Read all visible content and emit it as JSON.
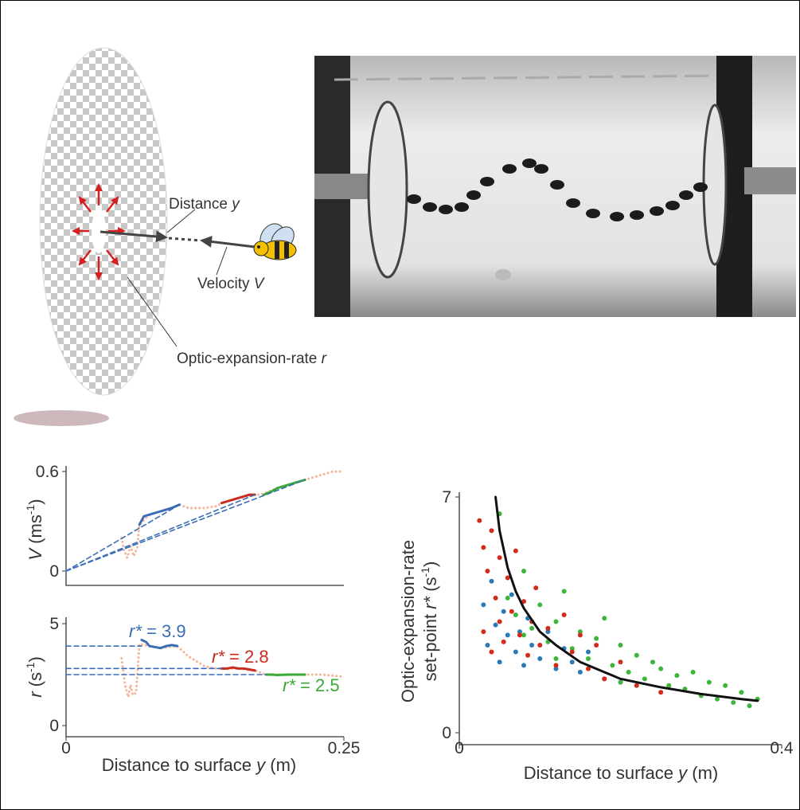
{
  "diagram": {
    "distance_label": [
      "Distance",
      "y"
    ],
    "velocity_label": [
      "Velocity",
      "V"
    ],
    "rate_label": [
      "Optic-expansion-rate",
      "r"
    ]
  },
  "chart_data": [
    {
      "type": "line",
      "ylabel": [
        "V",
        "(ms",
        "-1",
        ")"
      ],
      "xlim": [
        0,
        0.25
      ],
      "ylim": [
        0,
        0.6
      ],
      "yticks": [
        0,
        0.6
      ],
      "series": [
        {
          "color": "#f4b49c",
          "style": "dotted",
          "x": [
            0.05,
            0.052,
            0.055,
            0.058,
            0.061,
            0.064,
            0.066,
            0.075,
            0.085,
            0.095,
            0.102,
            0.11,
            0.125,
            0.135,
            0.14,
            0.155,
            0.17,
            0.175,
            0.19,
            0.205,
            0.215,
            0.23,
            0.24,
            0.25
          ],
          "values": [
            0.2,
            0.13,
            0.08,
            0.15,
            0.09,
            0.14,
            0.28,
            0.34,
            0.36,
            0.38,
            0.4,
            0.38,
            0.38,
            0.39,
            0.41,
            0.44,
            0.46,
            0.46,
            0.5,
            0.53,
            0.55,
            0.58,
            0.6,
            0.6
          ]
        },
        {
          "color": "#3a6db5",
          "style": "solid",
          "x": [
            0.066,
            0.07,
            0.075,
            0.08,
            0.085,
            0.09,
            0.095,
            0.102
          ],
          "values": [
            0.28,
            0.33,
            0.34,
            0.35,
            0.36,
            0.37,
            0.38,
            0.4
          ]
        },
        {
          "color": "#cc2a1e",
          "style": "solid",
          "x": [
            0.14,
            0.145,
            0.15,
            0.155,
            0.16,
            0.165,
            0.17
          ],
          "values": [
            0.41,
            0.42,
            0.43,
            0.44,
            0.45,
            0.46,
            0.46
          ]
        },
        {
          "color": "#3aaa35",
          "style": "solid",
          "x": [
            0.178,
            0.185,
            0.19,
            0.195,
            0.2,
            0.205,
            0.21,
            0.215
          ],
          "values": [
            0.46,
            0.48,
            0.5,
            0.51,
            0.52,
            0.53,
            0.54,
            0.55
          ]
        },
        {
          "color": "#3a6db5",
          "style": "dashed",
          "x": [
            0,
            0.102
          ],
          "values": [
            0,
            0.4
          ]
        },
        {
          "color": "#3a6db5",
          "style": "dashed",
          "x": [
            0,
            0.17
          ],
          "values": [
            0,
            0.46
          ]
        },
        {
          "color": "#3a6db5",
          "style": "dashed",
          "x": [
            0,
            0.215
          ],
          "values": [
            0,
            0.55
          ]
        }
      ]
    },
    {
      "type": "line",
      "ylabel": [
        "r",
        "(s",
        "-1",
        ")"
      ],
      "xlabel": [
        "Distance to surface",
        "y",
        "(m)"
      ],
      "xlim": [
        0,
        0.25
      ],
      "ylim": [
        0,
        5
      ],
      "xticks": [
        0,
        0.25
      ],
      "yticks": [
        0,
        5
      ],
      "annotations": [
        [
          "r*",
          "= 3.9"
        ],
        [
          "r*",
          "= 2.8"
        ],
        [
          "r*",
          "= 2.5"
        ]
      ],
      "series": [
        {
          "color": "#f4b49c",
          "style": "dotted",
          "x": [
            0.05,
            0.053,
            0.056,
            0.058,
            0.06,
            0.063,
            0.066,
            0.075,
            0.085,
            0.1,
            0.11,
            0.125,
            0.135,
            0.14,
            0.155,
            0.17,
            0.18,
            0.2,
            0.215,
            0.23,
            0.25
          ],
          "values": [
            3.3,
            2.0,
            1.4,
            2.0,
            1.5,
            1.6,
            4.0,
            3.9,
            3.8,
            3.9,
            3.4,
            2.9,
            2.8,
            2.8,
            2.8,
            2.7,
            2.5,
            2.5,
            2.5,
            2.5,
            2.4
          ]
        },
        {
          "color": "#3a6db5",
          "style": "solid",
          "x": [
            0.068,
            0.072,
            0.075,
            0.08,
            0.085,
            0.09,
            0.095,
            0.1
          ],
          "values": [
            4.2,
            4.1,
            3.9,
            3.85,
            3.8,
            3.9,
            3.95,
            3.9
          ]
        },
        {
          "color": "#cc2a1e",
          "style": "solid",
          "x": [
            0.14,
            0.145,
            0.15,
            0.155,
            0.16,
            0.165,
            0.17
          ],
          "values": [
            2.8,
            2.8,
            2.85,
            2.8,
            2.8,
            2.75,
            2.7
          ]
        },
        {
          "color": "#3aaa35",
          "style": "solid",
          "x": [
            0.18,
            0.185,
            0.19,
            0.2,
            0.205,
            0.21,
            0.215
          ],
          "values": [
            2.5,
            2.5,
            2.48,
            2.5,
            2.5,
            2.5,
            2.5
          ]
        },
        {
          "color": "#3a6db5",
          "style": "dashed",
          "x": [
            0,
            0.068
          ],
          "values": [
            3.9,
            3.9
          ]
        },
        {
          "color": "#3a6db5",
          "style": "dashed",
          "x": [
            0,
            0.14
          ],
          "values": [
            2.8,
            2.8
          ]
        },
        {
          "color": "#3a6db5",
          "style": "dashed",
          "x": [
            0,
            0.18
          ],
          "values": [
            2.5,
            2.5
          ]
        }
      ]
    },
    {
      "type": "scatter",
      "ylabel": [
        [
          "Optic-expansion-rate"
        ],
        [
          "set-point",
          "r*",
          "(s",
          "-1",
          ")"
        ]
      ],
      "xlabel": [
        "Distance to surface",
        "y",
        "(m)"
      ],
      "xlim": [
        0,
        0.4
      ],
      "ylim": [
        0,
        7
      ],
      "xticks": [
        0,
        0.4
      ],
      "yticks": [
        0,
        7
      ],
      "series": [
        {
          "color": "#2a7ab8",
          "x": [
            0.03,
            0.035,
            0.04,
            0.045,
            0.05,
            0.055,
            0.06,
            0.065,
            0.07,
            0.075,
            0.08,
            0.085,
            0.09,
            0.1,
            0.11,
            0.12,
            0.13,
            0.14,
            0.15,
            0.16,
            0.18,
            0.2
          ],
          "values": [
            3.8,
            2.6,
            4.5,
            3.2,
            2.1,
            3.6,
            2.9,
            4.1,
            2.4,
            3.0,
            2.0,
            3.4,
            2.6,
            2.2,
            3.0,
            1.9,
            2.5,
            2.1,
            1.8,
            2.4,
            1.6,
            1.5
          ]
        },
        {
          "color": "#3db53a",
          "x": [
            0.05,
            0.06,
            0.07,
            0.08,
            0.09,
            0.1,
            0.11,
            0.12,
            0.13,
            0.14,
            0.15,
            0.16,
            0.17,
            0.18,
            0.19,
            0.2,
            0.21,
            0.22,
            0.23,
            0.24,
            0.25,
            0.26,
            0.27,
            0.28,
            0.29,
            0.3,
            0.31,
            0.32,
            0.33,
            0.34,
            0.35,
            0.36,
            0.37,
            0.08,
            0.12,
            0.2
          ],
          "values": [
            6.5,
            4.0,
            3.5,
            4.8,
            3.1,
            3.8,
            2.7,
            3.3,
            4.2,
            2.5,
            3.0,
            2.2,
            2.8,
            3.4,
            2.0,
            2.6,
            1.8,
            2.3,
            1.6,
            2.1,
            1.9,
            1.4,
            1.7,
            1.3,
            1.8,
            1.1,
            1.5,
            1.0,
            1.4,
            0.9,
            1.2,
            0.8,
            1.0,
            2.9,
            2.2,
            1.5
          ]
        },
        {
          "color": "#d42a1a",
          "x": [
            0.025,
            0.03,
            0.03,
            0.035,
            0.04,
            0.04,
            0.045,
            0.05,
            0.05,
            0.055,
            0.06,
            0.065,
            0.07,
            0.075,
            0.08,
            0.085,
            0.09,
            0.095,
            0.1,
            0.11,
            0.12,
            0.13,
            0.14,
            0.15,
            0.16,
            0.17,
            0.18,
            0.2,
            0.22,
            0.25
          ],
          "values": [
            6.3,
            5.5,
            3.0,
            4.8,
            6.0,
            2.4,
            4.0,
            5.2,
            3.3,
            2.7,
            4.6,
            3.6,
            5.4,
            2.9,
            3.9,
            2.3,
            3.3,
            4.3,
            2.6,
            3.1,
            2.0,
            3.5,
            2.4,
            2.9,
            1.9,
            2.6,
            1.6,
            2.1,
            1.4,
            1.2
          ]
        },
        {
          "type": "line",
          "color": "#111111",
          "x": [
            0.045,
            0.05,
            0.06,
            0.07,
            0.08,
            0.1,
            0.12,
            0.15,
            0.2,
            0.25,
            0.3,
            0.35,
            0.37
          ],
          "values": [
            7.0,
            6.0,
            4.9,
            4.2,
            3.7,
            3.0,
            2.6,
            2.1,
            1.6,
            1.35,
            1.15,
            1.0,
            0.95
          ]
        }
      ]
    }
  ]
}
